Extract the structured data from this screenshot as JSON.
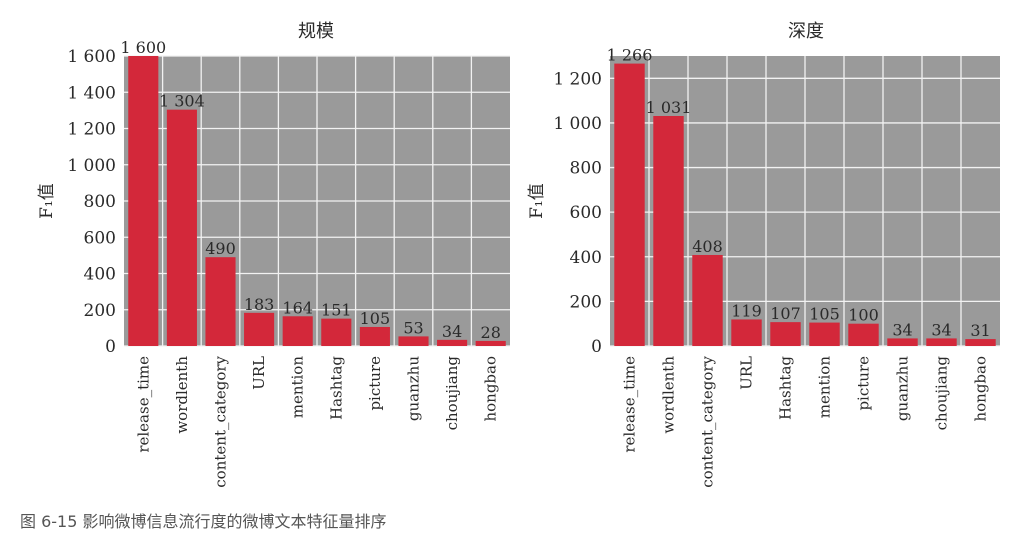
{
  "caption": "图 6-15   影响微博信息流行度的微博文本特征量排序",
  "colors": {
    "bar": "#d3283a",
    "plot_bg": "#9a9a9a",
    "grid": "#f2f2f2"
  },
  "chart_data": [
    {
      "type": "bar",
      "title": "规模",
      "ylabel": "F₁值",
      "categories": [
        "release_time",
        "wordlenth",
        "content_category",
        "URL",
        "mention",
        "Hashtag",
        "picture",
        "guanzhu",
        "choujiang",
        "hongbao"
      ],
      "values": [
        1600,
        1304,
        490,
        183,
        164,
        151,
        105,
        53,
        34,
        28
      ],
      "value_labels": [
        "1 600",
        "1 304",
        "490",
        "183",
        "164",
        "151",
        "105",
        "53",
        "34",
        "28"
      ],
      "yticks": [
        0,
        200,
        400,
        600,
        800,
        1000,
        1200,
        1400,
        1600
      ],
      "ytick_labels": [
        "0",
        "200",
        "400",
        "600",
        "800",
        "1 000",
        "1 200",
        "1 400",
        "1 600"
      ],
      "ylim": [
        0,
        1600
      ],
      "grid": true
    },
    {
      "type": "bar",
      "title": "深度",
      "ylabel": "F₁值",
      "categories": [
        "release_time",
        "wordlenth",
        "content_category",
        "URL",
        "Hashtag",
        "mention",
        "picture",
        "guanzhu",
        "choujiang",
        "hongbao"
      ],
      "values": [
        1266,
        1031,
        408,
        119,
        107,
        105,
        100,
        34,
        34,
        31
      ],
      "value_labels": [
        "1 266",
        "1 031",
        "408",
        "119",
        "107",
        "105",
        "100",
        "34",
        "34",
        "31"
      ],
      "yticks": [
        0,
        200,
        400,
        600,
        800,
        1000,
        1200
      ],
      "ytick_labels": [
        "0",
        "200",
        "400",
        "600",
        "800",
        "1 000",
        "1 200"
      ],
      "ylim": [
        0,
        1300
      ],
      "grid": true
    }
  ]
}
